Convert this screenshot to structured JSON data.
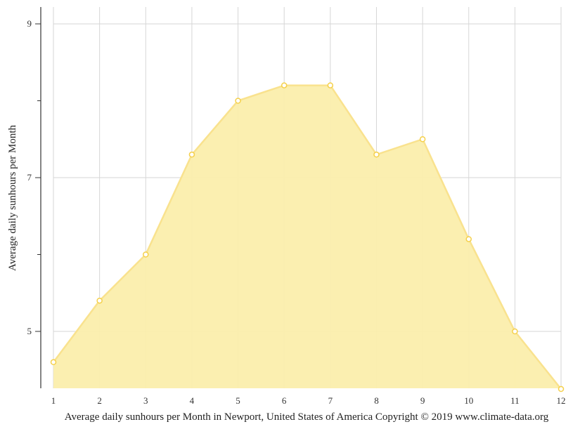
{
  "chart_data": {
    "type": "area",
    "title": "Average daily sunhours per Month in Newport, United States of America Copyright © 2019 www.climate-data.org",
    "xlabel": "Average daily sunhours per Month in Newport, United States of America Copyright © 2019 www.climate-data.org",
    "ylabel": "Average daily sunhours per Month",
    "categories": [
      "1",
      "2",
      "3",
      "4",
      "5",
      "6",
      "7",
      "8",
      "9",
      "10",
      "11",
      "12"
    ],
    "series": [
      {
        "name": "Average daily sunhours",
        "values": [
          4.6,
          5.4,
          6.0,
          7.3,
          8.0,
          8.2,
          8.2,
          7.3,
          7.5,
          6.2,
          5.0,
          4.25
        ]
      }
    ],
    "y_ticks_major": [
      5,
      7,
      9
    ],
    "y_ticks_minor": [
      6,
      8
    ],
    "ylim": [
      4.25,
      9.2
    ],
    "grid": true,
    "legend": null,
    "colors": {
      "fill": "#fbeeac",
      "line": "#f9e28e",
      "marker_stroke": "#f5d04a",
      "marker_fill": "#ffffff",
      "grid": "#d6d6d6",
      "axis": "#333333"
    }
  },
  "labels": {
    "y_axis_title": "Average daily sunhours per Month",
    "x_axis_title": "Average daily sunhours per Month in Newport, United States of America Copyright © 2019 www.climate-data.org",
    "y_tick_9": "9",
    "y_tick_7": "7",
    "y_tick_5": "5"
  }
}
